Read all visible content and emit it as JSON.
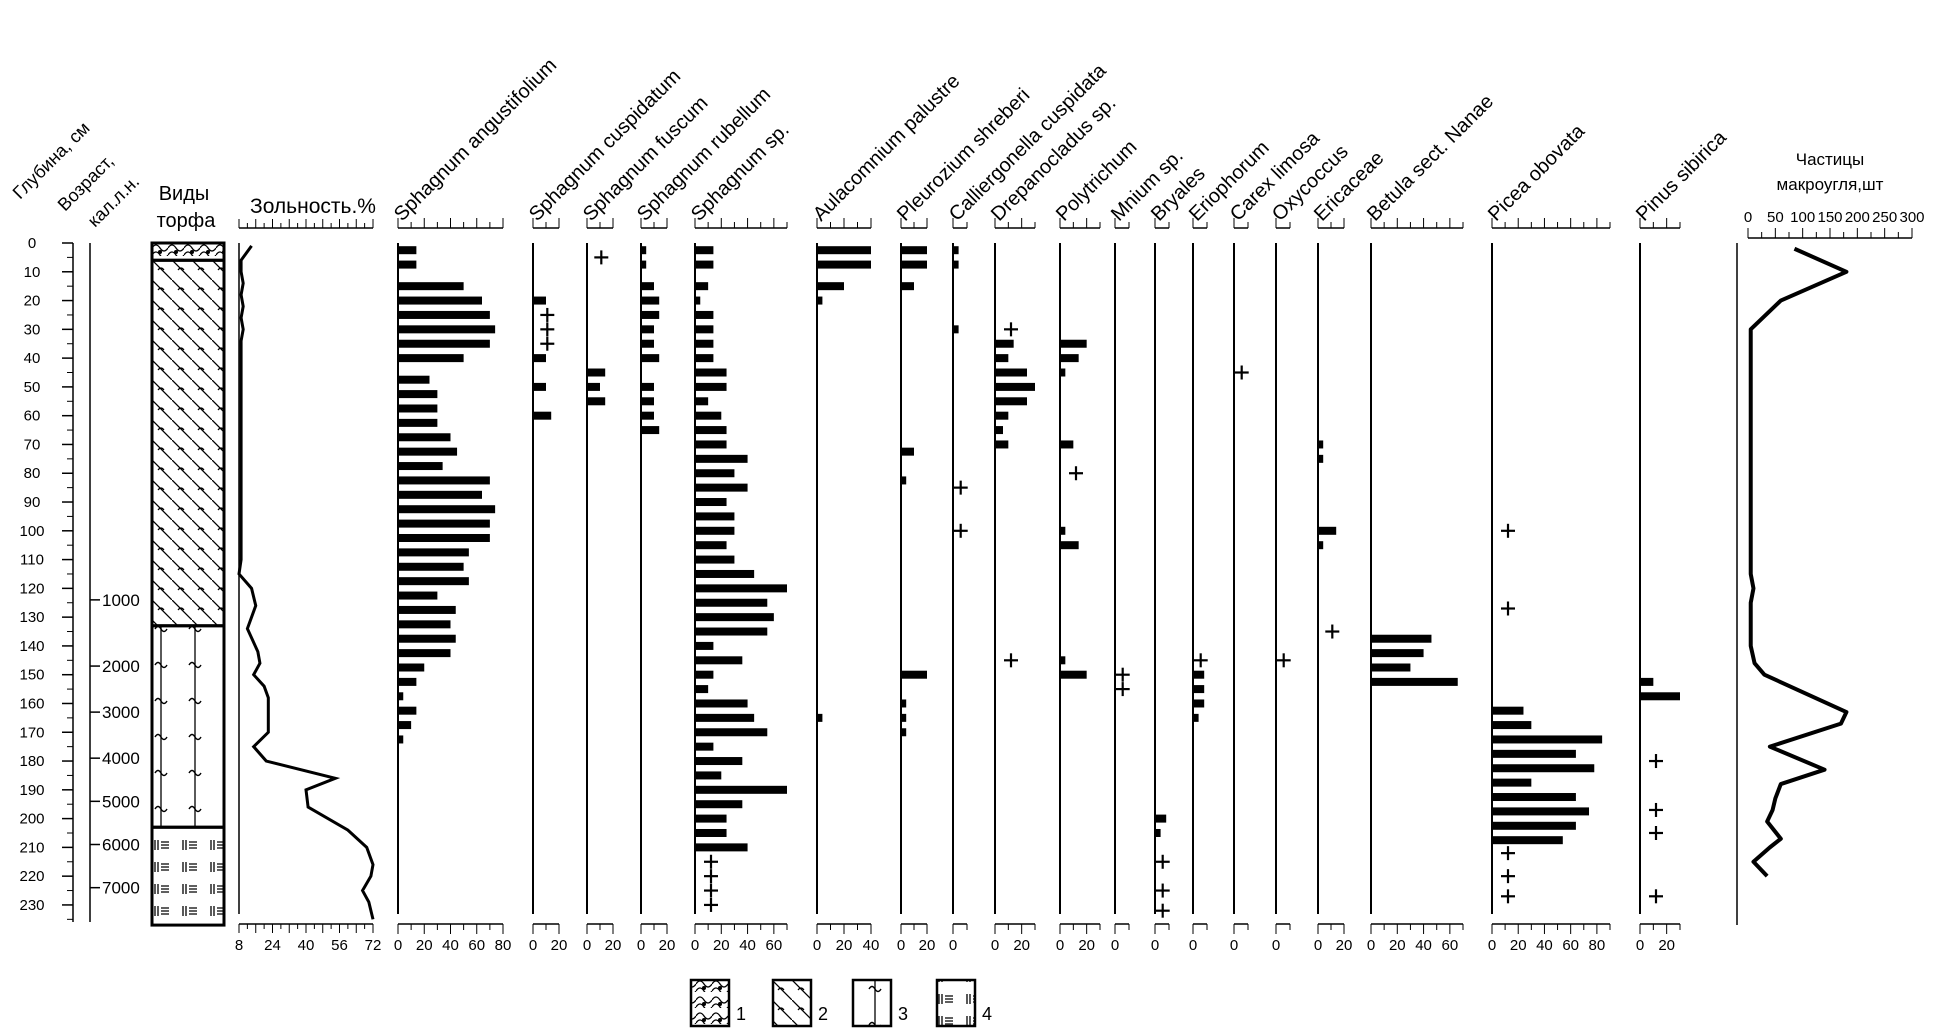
{
  "chart_data": {
    "type": "bar",
    "title": "",
    "depth_axis": {
      "label": "Глубина, см",
      "range": [
        0,
        235
      ],
      "ticks": [
        0,
        10,
        20,
        30,
        40,
        50,
        60,
        70,
        80,
        90,
        100,
        110,
        120,
        130,
        140,
        150,
        160,
        170,
        180,
        190,
        200,
        210,
        220,
        230
      ]
    },
    "age_axis": {
      "label_line1": "Возраст,",
      "label_line2": "кал.л.н.",
      "ticks": [
        {
          "label": "1000",
          "depth": 124
        },
        {
          "label": "2000",
          "depth": 147
        },
        {
          "label": "3000",
          "depth": 163
        },
        {
          "label": "4000",
          "depth": 179
        },
        {
          "label": "5000",
          "depth": 194
        },
        {
          "label": "6000",
          "depth": 209
        },
        {
          "label": "7000",
          "depth": 224
        }
      ]
    },
    "peat_types": {
      "label_line1": "Виды",
      "label_line2": "торфа",
      "layers": [
        {
          "type": 1,
          "from": 0,
          "to": 6
        },
        {
          "type": 2,
          "from": 6,
          "to": 133
        },
        {
          "type": 3,
          "from": 133,
          "to": 203
        },
        {
          "type": 4,
          "from": 203,
          "to": 237
        }
      ]
    },
    "ash": {
      "label": "Зольность.%",
      "xlim": [
        8,
        72
      ],
      "ticklabels": [
        "8",
        "24",
        "40",
        "56",
        "72"
      ],
      "points": [
        [
          14,
          1
        ],
        [
          11,
          4
        ],
        [
          9,
          6
        ],
        [
          9,
          10
        ],
        [
          10,
          14
        ],
        [
          9,
          18
        ],
        [
          10,
          22
        ],
        [
          9,
          26
        ],
        [
          10,
          30
        ],
        [
          9,
          34
        ],
        [
          9,
          40
        ],
        [
          9,
          60
        ],
        [
          9,
          80
        ],
        [
          9,
          100
        ],
        [
          9,
          110
        ],
        [
          8,
          115
        ],
        [
          14,
          120
        ],
        [
          16,
          126
        ],
        [
          12,
          134
        ],
        [
          17,
          142
        ],
        [
          18,
          146
        ],
        [
          15,
          150
        ],
        [
          20,
          154
        ],
        [
          22,
          158
        ],
        [
          22,
          164
        ],
        [
          22,
          170
        ],
        [
          15,
          175
        ],
        [
          21,
          180
        ],
        [
          54,
          186
        ],
        [
          40,
          190
        ],
        [
          41,
          196
        ],
        [
          60,
          204
        ],
        [
          69,
          210
        ],
        [
          72,
          216
        ],
        [
          71,
          220
        ],
        [
          67,
          225
        ],
        [
          70,
          229
        ],
        [
          72,
          235
        ]
      ]
    },
    "bar_depths": [
      2.5,
      7.5,
      15,
      20,
      25,
      30,
      35,
      40,
      47.5,
      52.5,
      57.5,
      62.5,
      67.5,
      72.5,
      77.5,
      82.5,
      87.5,
      92.5,
      97.5,
      102.5,
      107.5,
      112.5,
      117.5,
      122.5,
      127.5,
      132.5,
      137.5,
      142.5,
      147.5,
      152.5,
      157.5,
      162.5,
      167.5,
      172.5,
      177.5,
      182.5,
      187.5,
      192.5,
      197.5,
      202.5
    ],
    "taxa": [
      {
        "name": "Sphagnum angustifolium",
        "xlim": [
          0,
          80
        ],
        "ticklabels": [
          "0",
          "20",
          "40",
          "60",
          "80"
        ],
        "bars": [
          [
            2.5,
            14
          ],
          [
            7.5,
            14
          ],
          [
            15,
            50
          ],
          [
            20,
            64
          ],
          [
            25,
            70
          ],
          [
            30,
            74
          ],
          [
            35,
            70
          ],
          [
            40,
            50
          ],
          [
            47.5,
            24
          ],
          [
            52.5,
            30
          ],
          [
            57.5,
            30
          ],
          [
            62.5,
            30
          ],
          [
            67.5,
            40
          ],
          [
            72.5,
            45
          ],
          [
            77.5,
            34
          ],
          [
            82.5,
            70
          ],
          [
            87.5,
            64
          ],
          [
            92.5,
            74
          ],
          [
            97.5,
            70
          ],
          [
            102.5,
            70
          ],
          [
            107.5,
            54
          ],
          [
            112.5,
            50
          ],
          [
            117.5,
            54
          ],
          [
            122.5,
            30
          ],
          [
            127.5,
            44
          ],
          [
            132.5,
            40
          ],
          [
            137.5,
            44
          ],
          [
            142.5,
            40
          ],
          [
            147.5,
            20
          ],
          [
            152.5,
            14
          ],
          [
            157.5,
            4
          ],
          [
            162.5,
            14
          ],
          [
            167.5,
            10
          ],
          [
            172.5,
            4
          ]
        ],
        "plus": []
      },
      {
        "name": "Sphagnum cuspidatum",
        "xlim": [
          0,
          20
        ],
        "ticklabels": [
          "0",
          "20"
        ],
        "bars": [
          [
            20,
            10
          ],
          [
            40,
            10
          ],
          [
            50,
            10
          ],
          [
            60,
            14
          ]
        ],
        "plus": [
          25,
          30,
          35
        ]
      },
      {
        "name": "Sphagnum fuscum",
        "xlim": [
          0,
          20
        ],
        "ticklabels": [
          "0",
          "20"
        ],
        "bars": [
          [
            45,
            14
          ],
          [
            50,
            10
          ],
          [
            55,
            14
          ]
        ],
        "plus": [
          5
        ]
      },
      {
        "name": "Sphagnum rubellum",
        "xlim": [
          0,
          20
        ],
        "ticklabels": [
          "0",
          "20"
        ],
        "bars": [
          [
            2.5,
            4
          ],
          [
            7.5,
            4
          ],
          [
            15,
            10
          ],
          [
            20,
            14
          ],
          [
            25,
            14
          ],
          [
            30,
            10
          ],
          [
            35,
            10
          ],
          [
            40,
            14
          ],
          [
            50,
            10
          ],
          [
            55,
            10
          ],
          [
            60,
            10
          ],
          [
            65,
            14
          ]
        ],
        "plus": []
      },
      {
        "name": "Sphagnum sp.",
        "xlim": [
          0,
          70
        ],
        "ticklabels": [
          "0",
          "20",
          "40",
          "60"
        ],
        "bars": [
          [
            2.5,
            14
          ],
          [
            7.5,
            14
          ],
          [
            15,
            10
          ],
          [
            20,
            4
          ],
          [
            25,
            14
          ],
          [
            30,
            14
          ],
          [
            35,
            14
          ],
          [
            40,
            14
          ],
          [
            45,
            24
          ],
          [
            50,
            24
          ],
          [
            55,
            10
          ],
          [
            60,
            20
          ],
          [
            65,
            24
          ],
          [
            70,
            24
          ],
          [
            75,
            40
          ],
          [
            80,
            30
          ],
          [
            85,
            40
          ],
          [
            90,
            24
          ],
          [
            95,
            30
          ],
          [
            100,
            30
          ],
          [
            105,
            24
          ],
          [
            110,
            30
          ],
          [
            115,
            45
          ],
          [
            120,
            70
          ],
          [
            125,
            55
          ],
          [
            130,
            60
          ],
          [
            135,
            55
          ],
          [
            140,
            14
          ],
          [
            145,
            36
          ],
          [
            150,
            14
          ],
          [
            155,
            10
          ],
          [
            160,
            40
          ],
          [
            165,
            45
          ],
          [
            170,
            55
          ],
          [
            175,
            14
          ],
          [
            180,
            36
          ],
          [
            185,
            20
          ],
          [
            190,
            70
          ],
          [
            195,
            36
          ],
          [
            200,
            24
          ],
          [
            205,
            24
          ],
          [
            210,
            40
          ]
        ],
        "plus": [
          215,
          220,
          225,
          230
        ]
      },
      {
        "name": "Aulacomnium palustre",
        "xlim": [
          0,
          40
        ],
        "ticklabels": [
          "0",
          "20",
          "40"
        ],
        "bars": [
          [
            2.5,
            40
          ],
          [
            7.5,
            40
          ],
          [
            15,
            20
          ],
          [
            20,
            4
          ],
          [
            165,
            4
          ]
        ],
        "plus": []
      },
      {
        "name": "Pleurozium shreberi",
        "xlim": [
          0,
          20
        ],
        "ticklabels": [
          "0",
          "20"
        ],
        "bars": [
          [
            2.5,
            20
          ],
          [
            7.5,
            20
          ],
          [
            15,
            10
          ],
          [
            72.5,
            10
          ],
          [
            82.5,
            4
          ],
          [
            150,
            20
          ],
          [
            160,
            4
          ],
          [
            165,
            4
          ],
          [
            170,
            4
          ]
        ],
        "plus": []
      },
      {
        "name": "Calliergonella cuspidata",
        "xlim": [
          0,
          10
        ],
        "ticklabels": [
          "0"
        ],
        "bars": [
          [
            2.5,
            4
          ],
          [
            7.5,
            4
          ],
          [
            30,
            4
          ]
        ],
        "plus": [
          85,
          100
        ]
      },
      {
        "name": "Drepanocladus sp.",
        "xlim": [
          0,
          30
        ],
        "ticklabels": [
          "0",
          "20"
        ],
        "bars": [
          [
            35,
            14
          ],
          [
            40,
            10
          ],
          [
            45,
            24
          ],
          [
            50,
            30
          ],
          [
            55,
            24
          ],
          [
            60,
            10
          ],
          [
            65,
            6
          ],
          [
            70,
            10
          ]
        ],
        "plus": [
          30,
          145
        ]
      },
      {
        "name": "Polytrichum",
        "xlim": [
          0,
          30
        ],
        "ticklabels": [
          "0",
          "20"
        ],
        "bars": [
          [
            35,
            20
          ],
          [
            40,
            14
          ],
          [
            45,
            4
          ],
          [
            70,
            10
          ],
          [
            100,
            4
          ],
          [
            105,
            14
          ],
          [
            145,
            4
          ],
          [
            150,
            20
          ]
        ],
        "plus": [
          80
        ]
      },
      {
        "name": "Mnium sp.",
        "xlim": [
          0,
          10
        ],
        "ticklabels": [
          "0"
        ],
        "bars": [],
        "plus": [
          150,
          155
        ]
      },
      {
        "name": "Bryales",
        "xlim": [
          0,
          10
        ],
        "ticklabels": [
          "0"
        ],
        "bars": [
          [
            200,
            8
          ],
          [
            205,
            4
          ]
        ],
        "plus": [
          215,
          225,
          232
        ]
      },
      {
        "name": "Eriophorum",
        "xlim": [
          0,
          10
        ],
        "ticklabels": [
          "0"
        ],
        "bars": [
          [
            150,
            8
          ],
          [
            155,
            8
          ],
          [
            160,
            8
          ],
          [
            165,
            4
          ]
        ],
        "plus": [
          145
        ]
      },
      {
        "name": "Carex limosa",
        "xlim": [
          0,
          10
        ],
        "ticklabels": [
          "0"
        ],
        "bars": [],
        "plus": [
          45
        ]
      },
      {
        "name": "Oxycoccus",
        "xlim": [
          0,
          10
        ],
        "ticklabels": [
          "0"
        ],
        "bars": [],
        "plus": [
          145
        ]
      },
      {
        "name": "Ericaceae",
        "xlim": [
          0,
          20
        ],
        "ticklabels": [
          "0",
          "20"
        ],
        "bars": [
          [
            70,
            4
          ],
          [
            75,
            4
          ],
          [
            100,
            14
          ],
          [
            105,
            4
          ]
        ],
        "plus": [
          135
        ]
      },
      {
        "name": "Betula sect. Nanae",
        "xlim": [
          0,
          70
        ],
        "ticklabels": [
          "0",
          "20",
          "40",
          "60"
        ],
        "bars": [
          [
            137.5,
            46
          ],
          [
            142.5,
            40
          ],
          [
            147.5,
            30
          ],
          [
            152.5,
            66
          ]
        ],
        "plus": []
      },
      {
        "name": "Picea obovata",
        "xlim": [
          0,
          90
        ],
        "ticklabels": [
          "0",
          "20",
          "40",
          "60",
          "80"
        ],
        "bars": [
          [
            162.5,
            24
          ],
          [
            167.5,
            30
          ],
          [
            172.5,
            84
          ],
          [
            177.5,
            64
          ],
          [
            182.5,
            78
          ],
          [
            187.5,
            30
          ],
          [
            192.5,
            64
          ],
          [
            197.5,
            74
          ],
          [
            202.5,
            64
          ],
          [
            207.5,
            54
          ]
        ],
        "plus": [
          100,
          127,
          212,
          220,
          227
        ]
      },
      {
        "name": "Pinus sibirica",
        "xlim": [
          0,
          30
        ],
        "ticklabels": [
          "0",
          "20"
        ],
        "bars": [
          [
            152.5,
            10
          ],
          [
            157.5,
            30
          ]
        ],
        "plus": [
          180,
          197,
          205,
          227
        ]
      }
    ],
    "charcoal": {
      "label_line1": "Частицы",
      "label_line2": "макроугля,шт",
      "xlim": [
        0,
        300
      ],
      "ticklabels": [
        "0",
        "50",
        "100",
        "150",
        "200",
        "250",
        "300"
      ],
      "points": [
        [
          85,
          2
        ],
        [
          180,
          10
        ],
        [
          60,
          20
        ],
        [
          5,
          30
        ],
        [
          5,
          50
        ],
        [
          5,
          100
        ],
        [
          5,
          115
        ],
        [
          10,
          120
        ],
        [
          5,
          125
        ],
        [
          5,
          140
        ],
        [
          12,
          146
        ],
        [
          30,
          150
        ],
        [
          180,
          163
        ],
        [
          170,
          167
        ],
        [
          40,
          175
        ],
        [
          140,
          183
        ],
        [
          60,
          188
        ],
        [
          50,
          193
        ],
        [
          45,
          197
        ],
        [
          35,
          201
        ],
        [
          60,
          207
        ],
        [
          40,
          210
        ],
        [
          10,
          215
        ],
        [
          35,
          220
        ]
      ]
    },
    "legend": [
      {
        "label": "1"
      },
      {
        "label": "2"
      },
      {
        "label": "3"
      },
      {
        "label": "4"
      }
    ]
  }
}
